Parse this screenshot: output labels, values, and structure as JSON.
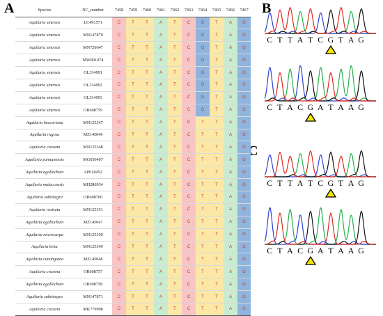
{
  "panels": {
    "a": "A",
    "b": "B",
    "c": "C"
  },
  "table": {
    "headers": [
      "Species",
      "NC_number",
      "7458",
      "7459",
      "7460",
      "7461",
      "7462",
      "7463",
      "7464",
      "7465",
      "7466",
      "7467"
    ],
    "column_colors": [
      "#f8c4c4",
      "#fbe8a6",
      "#fbe8a6",
      "#c9ecd1",
      "#fbe8a6",
      "#f8c4c4",
      "#fbe8a6",
      "#fbe8a6",
      "#c9ecd1",
      "#8fb4dd"
    ],
    "highlight_color": "#8fb4dd",
    "rows": [
      {
        "species": "Aquilaria sinensis",
        "acc": "LC491571",
        "bases": [
          "C",
          "T",
          "T",
          "A",
          "T",
          "C",
          "G",
          "T",
          "A",
          "G"
        ]
      },
      {
        "species": "Aquilaria sinensis",
        "acc": "MN147870",
        "bases": [
          "C",
          "T",
          "T",
          "A",
          "T",
          "C",
          "G",
          "T",
          "A",
          "G"
        ]
      },
      {
        "species": "Aquilaria sinensis",
        "acc": "MN720647",
        "bases": [
          "C",
          "T",
          "T",
          "A",
          "T",
          "C",
          "G",
          "T",
          "A",
          "G"
        ]
      },
      {
        "species": "Aquilaria sinensis",
        "acc": "MW801074",
        "bases": [
          "C",
          "T",
          "T",
          "A",
          "T",
          "C",
          "G",
          "T",
          "A",
          "G"
        ]
      },
      {
        "species": "Aquilaria sinensis",
        "acc": "OL334991",
        "bases": [
          "C",
          "T",
          "T",
          "A",
          "T",
          "C",
          "G",
          "T",
          "A",
          "G"
        ]
      },
      {
        "species": "Aquilaria sinensis",
        "acc": "OL334992",
        "bases": [
          "C",
          "T",
          "T",
          "A",
          "T",
          "C",
          "G",
          "T",
          "A",
          "G"
        ]
      },
      {
        "species": "Aquilaria sinensis",
        "acc": "OL334993",
        "bases": [
          "C",
          "T",
          "T",
          "A",
          "T",
          "C",
          "G",
          "T",
          "A",
          "G"
        ]
      },
      {
        "species": "Aquilaria sinensis",
        "acc": "OR608759",
        "bases": [
          "C",
          "T",
          "T",
          "A",
          "T",
          "C",
          "G",
          "T",
          "A",
          "G"
        ]
      },
      {
        "species": "Aquilaria beccariana",
        "acc": "MN125347",
        "bases": [
          "C",
          "T",
          "T",
          "A",
          "T",
          "C",
          "T",
          "T",
          "A",
          "G"
        ]
      },
      {
        "species": "Aquilaria rugosa",
        "acc": "MZ145049",
        "bases": [
          "C",
          "T",
          "T",
          "A",
          "T",
          "C",
          "T",
          "T",
          "A",
          "G"
        ]
      },
      {
        "species": "Aquilaria crassna",
        "acc": "MN125348",
        "bases": [
          "C",
          "T",
          "T",
          "A",
          "T",
          "C",
          "T",
          "T",
          "A",
          "G"
        ]
      },
      {
        "species": "Aquilaria yunnanensis",
        "acc": "MG656407",
        "bases": [
          "C",
          "T",
          "T",
          "A",
          "T",
          "C",
          "T",
          "T",
          "A",
          "G"
        ]
      },
      {
        "species": "Aquilaria agallochum",
        "acc": "AP018452",
        "bases": [
          "C",
          "T",
          "T",
          "A",
          "T",
          "C",
          "T",
          "T",
          "A",
          "G"
        ]
      },
      {
        "species": "Aquilaria malaccensis",
        "acc": "MH286934",
        "bases": [
          "C",
          "T",
          "T",
          "A",
          "T",
          "C",
          "T",
          "T",
          "A",
          "G"
        ]
      },
      {
        "species": "Aquilaria subintegra",
        "acc": "OR608760",
        "bases": [
          "C",
          "T",
          "T",
          "A",
          "T",
          "C",
          "T",
          "T",
          "A",
          "G"
        ]
      },
      {
        "species": "Aquilaria rostrata",
        "acc": "MN125351",
        "bases": [
          "C",
          "T",
          "T",
          "A",
          "T",
          "C",
          "T",
          "T",
          "A",
          "G"
        ]
      },
      {
        "species": "Aquilaria agallochum",
        "acc": "MZ145047",
        "bases": [
          "C",
          "T",
          "T",
          "A",
          "T",
          "C",
          "T",
          "T",
          "A",
          "G"
        ]
      },
      {
        "species": "Aquilaria microcarpa",
        "acc": "MN125350",
        "bases": [
          "C",
          "T",
          "T",
          "A",
          "T",
          "C",
          "T",
          "T",
          "A",
          "G"
        ]
      },
      {
        "species": "Aquilaria hirta",
        "acc": "MN125349",
        "bases": [
          "C",
          "T",
          "T",
          "A",
          "T",
          "C",
          "T",
          "T",
          "A",
          "G"
        ]
      },
      {
        "species": "Aquilaria cumingiana",
        "acc": "MZ145048",
        "bases": [
          "C",
          "T",
          "T",
          "A",
          "T",
          "C",
          "T",
          "T",
          "A",
          "G"
        ]
      },
      {
        "species": "Aquilaria crassna",
        "acc": "OR608757",
        "bases": [
          "C",
          "T",
          "T",
          "A",
          "T",
          "C",
          "T",
          "T",
          "A",
          "G"
        ]
      },
      {
        "species": "Aquilaria agallochum",
        "acc": "OR608758",
        "bases": [
          "C",
          "T",
          "T",
          "A",
          "T",
          "C",
          "T",
          "T",
          "A",
          "G"
        ]
      },
      {
        "species": "Aquilaria subintegra",
        "acc": "MN147871",
        "bases": [
          "C",
          "T",
          "T",
          "A",
          "T",
          "C",
          "T",
          "T",
          "A",
          "G"
        ]
      },
      {
        "species": "Aquilaria crassna",
        "acc": "MK779998",
        "bases": [
          "C",
          "T",
          "T",
          "A",
          "T",
          "C",
          "T",
          "T",
          "A",
          "G"
        ]
      }
    ]
  },
  "chromatograms": [
    {
      "id": "b-forward",
      "sequence": [
        "C",
        "T",
        "T",
        "A",
        "T",
        "C",
        "G",
        "T",
        "A",
        "G"
      ],
      "marker_index": 6
    },
    {
      "id": "b-reverse",
      "sequence": [
        "C",
        "T",
        "A",
        "C",
        "G",
        "A",
        "T",
        "A",
        "A",
        "G"
      ],
      "marker_index": 4
    },
    {
      "id": "c-forward",
      "sequence": [
        "C",
        "T",
        "T",
        "A",
        "T",
        "C",
        "G",
        "T",
        "A",
        "G"
      ],
      "marker_index": 6
    },
    {
      "id": "c-reverse",
      "sequence": [
        "C",
        "T",
        "A",
        "C",
        "G",
        "A",
        "T",
        "A",
        "A",
        "G"
      ],
      "marker_index": 4
    }
  ],
  "base_colors": {
    "A": "#22b14c",
    "C": "#2d3fd6",
    "G": "#111111",
    "T": "#e0261f"
  },
  "marker_color": "#f2e600"
}
